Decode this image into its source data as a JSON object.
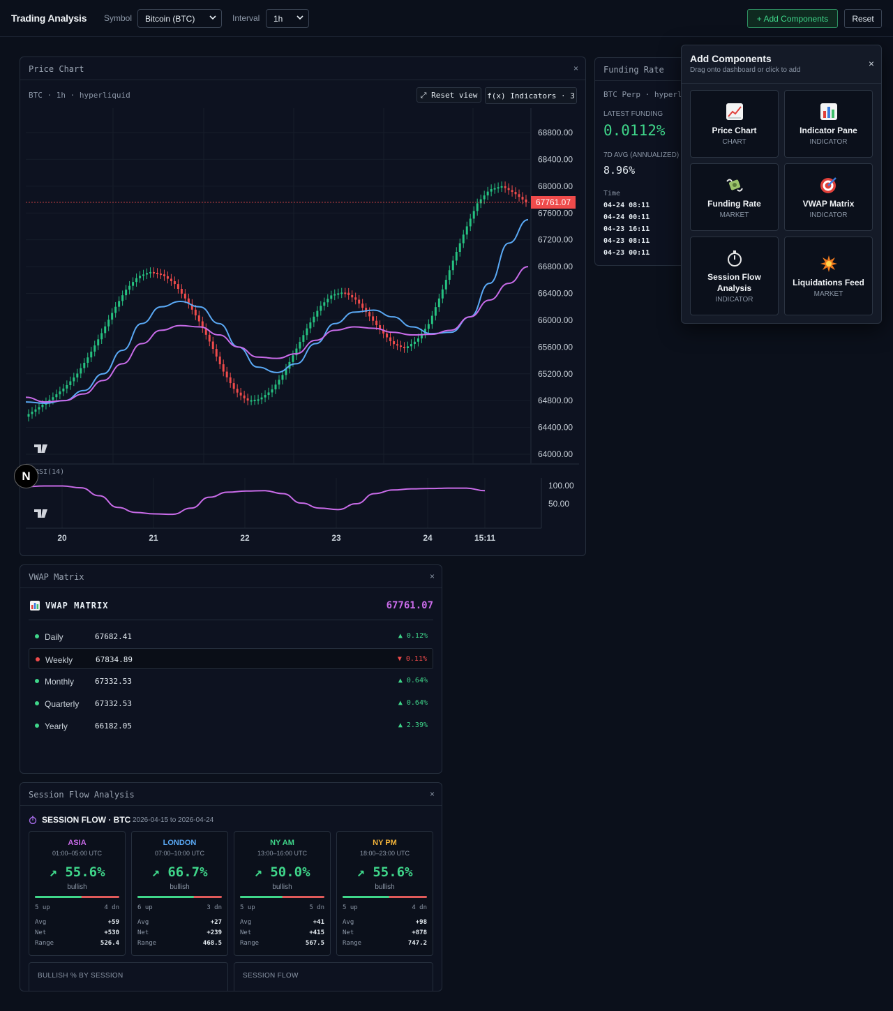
{
  "app": {
    "title": "Trading Analysis"
  },
  "toolbar": {
    "symbol_label": "Symbol",
    "symbol_value": "Bitcoin (BTC)",
    "interval_label": "Interval",
    "interval_value": "1h",
    "add_label": "+ Add Components",
    "reset_label": "Reset"
  },
  "price_panel": {
    "title": "Price Chart",
    "close": "×",
    "subtitle": "BTC · 1h · hyperliquid",
    "reset_view": "⤢ Reset view",
    "indicators": "f(x) Indicators · 3",
    "rsi_label": "RSI(14)",
    "last_price_tag": "67761.07"
  },
  "chart_data": [
    {
      "type": "candlestick",
      "symbol": "BTC",
      "interval": "1h",
      "source": "hyperliquid",
      "x_tick_labels": [
        "20",
        "21",
        "22",
        "23",
        "24",
        "15:11"
      ],
      "y_tick_labels": [
        "68800.00",
        "68400.00",
        "68000.00",
        "67600.00",
        "67200.00",
        "66800.00",
        "66400.00",
        "66000.00",
        "65600.00",
        "65200.00",
        "64800.00",
        "64400.00",
        "64000.00"
      ],
      "ylim": [
        64000,
        68800
      ],
      "last_price": 67761.07,
      "grid": true,
      "candle_close_approx": [
        64600,
        64720,
        64850,
        65000,
        65200,
        65480,
        65800,
        66150,
        66450,
        66650,
        66720,
        66680,
        66550,
        66300,
        66000,
        65650,
        65250,
        64950,
        64800,
        64820,
        64950,
        65200,
        65550,
        65900,
        66200,
        66380,
        66420,
        66300,
        66080,
        65850,
        65650,
        65580,
        65700,
        65950,
        66400,
        66900,
        67350,
        67750,
        67950,
        68000,
        67900,
        67761
      ],
      "series": [
        {
          "values": [
            64780,
            64760,
            64800,
            64950,
            65200,
            65550,
            65950,
            66200,
            66280,
            66200,
            65950,
            65600,
            65300,
            65220,
            65350,
            65650,
            65950,
            66120,
            66150,
            66050,
            65900,
            65800,
            65820,
            66050,
            66550,
            67150,
            67500
          ]
        },
        {
          "values": [
            64850,
            64780,
            64800,
            64900,
            65100,
            65350,
            65650,
            65850,
            65920,
            65900,
            65780,
            65600,
            65450,
            65430,
            65500,
            65700,
            65850,
            65900,
            65880,
            65820,
            65780,
            65790,
            65850,
            66050,
            66300,
            66550,
            66800
          ]
        }
      ]
    },
    {
      "type": "line",
      "series": [
        {
          "name": "RSI(14)",
          "values": [
            97,
            99,
            99,
            94,
            72,
            40,
            26,
            22,
            21,
            38,
            68,
            82,
            85,
            86,
            78,
            52,
            38,
            34,
            50,
            78,
            88,
            91,
            92,
            93,
            93,
            86
          ]
        }
      ],
      "y_tick_labels": [
        "100.00",
        "50.00"
      ],
      "ylim": [
        0,
        100
      ]
    }
  ],
  "funding_panel": {
    "title": "Funding Rate",
    "subtitle": "BTC Perp · hyperliquid",
    "latest_label": "LATEST FUNDING",
    "latest_value": "0.0112%",
    "avg_label": "7D AVG (ANNUALIZED)",
    "avg_value": "8.96%",
    "time_header": "Time",
    "rows": [
      "04-24 08:11",
      "04-24 00:11",
      "04-23 16:11",
      "04-23 08:11",
      "04-23 00:11"
    ]
  },
  "add_components": {
    "title": "Add Components",
    "subtitle": "Drag onto dashboard or click to add",
    "close": "×",
    "cards": [
      {
        "name": "Price Chart",
        "cat": "CHART",
        "icon": "chart-increasing-icon"
      },
      {
        "name": "Indicator Pane",
        "cat": "INDICATOR",
        "icon": "bar-chart-icon"
      },
      {
        "name": "Funding Rate",
        "cat": "MARKET",
        "icon": "money-with-wings-icon"
      },
      {
        "name": "VWAP Matrix",
        "cat": "INDICATOR",
        "icon": "target-icon"
      },
      {
        "name": "Session Flow Analysis",
        "cat": "INDICATOR",
        "icon": "stopwatch-icon"
      },
      {
        "name": "Liquidations Feed",
        "cat": "MARKET",
        "icon": "collision-icon"
      }
    ]
  },
  "vwap_panel": {
    "title": "VWAP Matrix",
    "close": "×",
    "heading": "VWAP MATRIX",
    "price": "67761.07",
    "rows": [
      {
        "name": "Daily",
        "value": "67682.41",
        "change": "▲ 0.12%",
        "up": true
      },
      {
        "name": "Weekly",
        "value": "67834.89",
        "change": "▼ 0.11%",
        "up": false
      },
      {
        "name": "Monthly",
        "value": "67332.53",
        "change": "▲ 0.64%",
        "up": true
      },
      {
        "name": "Quarterly",
        "value": "67332.53",
        "change": "▲ 0.64%",
        "up": true
      },
      {
        "name": "Yearly",
        "value": "66182.05",
        "change": "▲ 2.39%",
        "up": true
      }
    ],
    "colors": {
      "up": "#3fd68a",
      "down": "#ef4b4b",
      "accent": "#c86be8"
    }
  },
  "session_panel": {
    "title": "Session Flow Analysis",
    "close": "×",
    "heading": "SESSION FLOW · BTC",
    "range": "2026-04-15 to 2026-04-24",
    "sessions": [
      {
        "name": "ASIA",
        "time": "01:00–05:00 UTC",
        "pct": "↗ 55.6%",
        "bias": "bullish",
        "up": "5 up",
        "dn": "4 dn",
        "bull_fraction": 0.556,
        "avg": "+59",
        "net": "+530",
        "range": "526.4",
        "color": "#c86be8"
      },
      {
        "name": "LONDON",
        "time": "07:00–10:00 UTC",
        "pct": "↗ 66.7%",
        "bias": "bullish",
        "up": "6 up",
        "dn": "3 dn",
        "bull_fraction": 0.667,
        "avg": "+27",
        "net": "+239",
        "range": "468.5",
        "color": "#5aa9f5"
      },
      {
        "name": "NY AM",
        "time": "13:00–16:00 UTC",
        "pct": "↗ 50.0%",
        "bias": "bullish",
        "up": "5 up",
        "dn": "5 dn",
        "bull_fraction": 0.5,
        "avg": "+41",
        "net": "+415",
        "range": "567.5",
        "color": "#3fd68a"
      },
      {
        "name": "NY PM",
        "time": "18:00–23:00 UTC",
        "pct": "↗ 55.6%",
        "bias": "bullish",
        "up": "5 up",
        "dn": "4 dn",
        "bull_fraction": 0.556,
        "avg": "+98",
        "net": "+878",
        "range": "747.2",
        "color": "#f0b23a"
      }
    ],
    "stat_labels": {
      "avg": "Avg",
      "net": "Net",
      "range": "Range"
    },
    "bottom_left": "BULLISH % BY SESSION",
    "bottom_right": "SESSION FLOW"
  }
}
